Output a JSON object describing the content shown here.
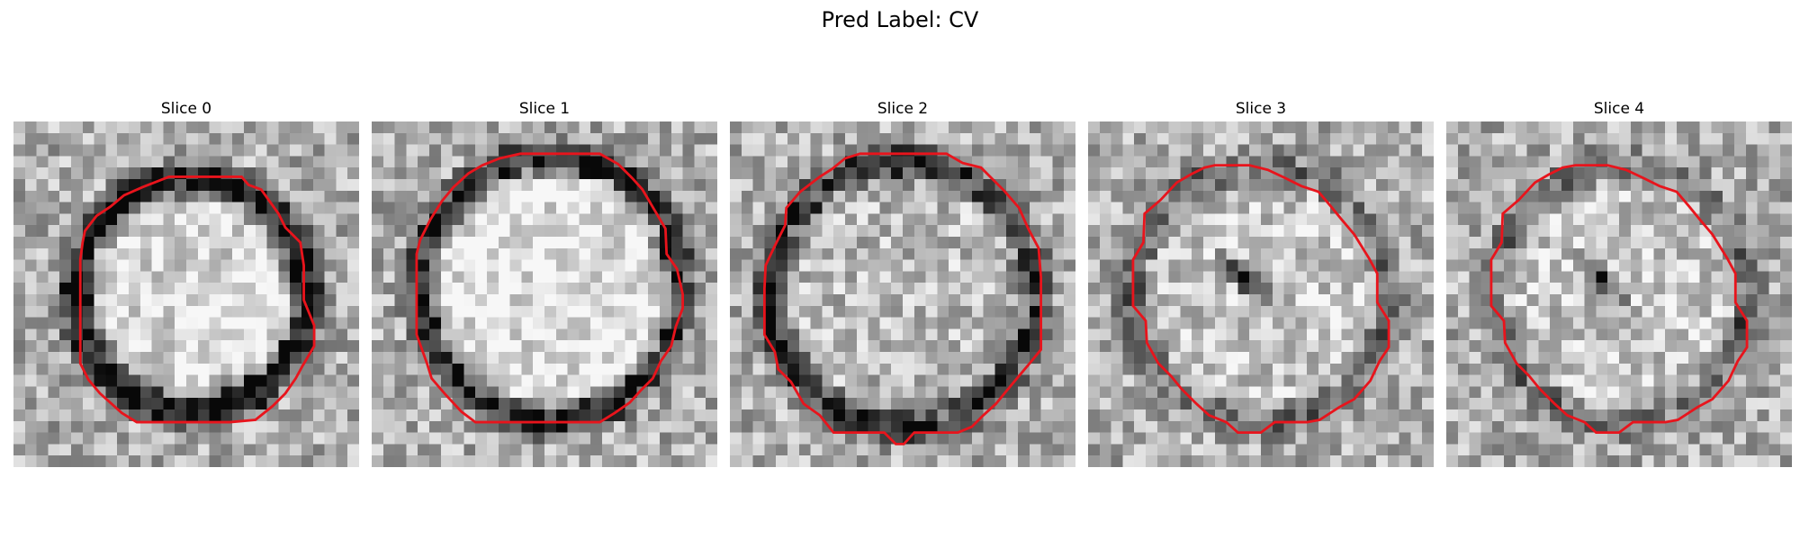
{
  "figure": {
    "title": "Pred Label: CV",
    "contour_color": "#e8141c"
  },
  "panels": [
    {
      "title": "Slice 0"
    },
    {
      "title": "Slice 1"
    },
    {
      "title": "Slice 2"
    },
    {
      "title": "Slice 3"
    },
    {
      "title": "Slice 4"
    }
  ]
}
